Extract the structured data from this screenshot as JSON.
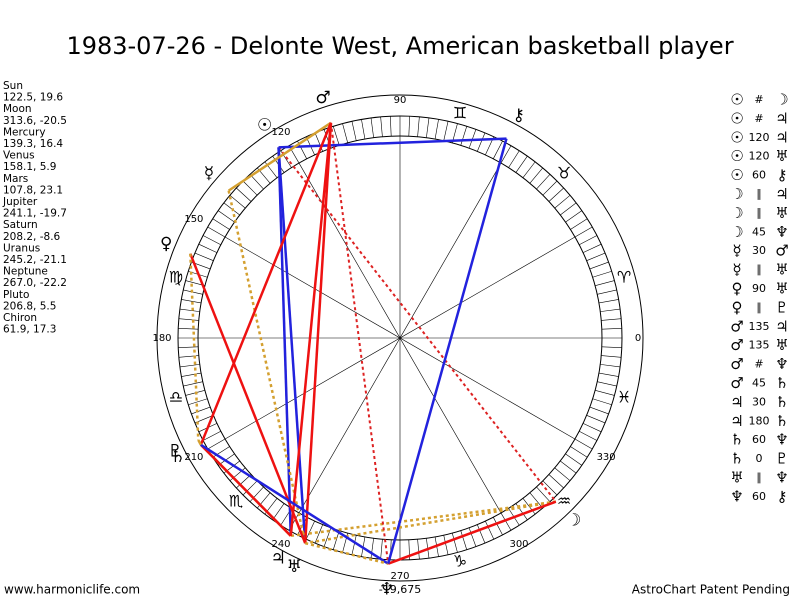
{
  "title": "1983-07-26 - Delonte West, American basketball player",
  "planets": [
    {
      "name": "Sun",
      "position": "122.5, 19.6",
      "glyph": "☉"
    },
    {
      "name": "Moon",
      "position": "313.6, -20.5",
      "glyph": "☽"
    },
    {
      "name": "Mercury",
      "position": "139.3, 16.4",
      "glyph": "☿"
    },
    {
      "name": "Venus",
      "position": "158.1, 5.9",
      "glyph": "♀"
    },
    {
      "name": "Mars",
      "position": "107.8, 23.1",
      "glyph": "♂"
    },
    {
      "name": "Jupiter",
      "position": "241.1, -19.7",
      "glyph": "♃"
    },
    {
      "name": "Saturn",
      "position": "208.2, -8.6",
      "glyph": "♄"
    },
    {
      "name": "Uranus",
      "position": "245.2, -21.1",
      "glyph": "♅"
    },
    {
      "name": "Neptune",
      "position": "267.0, -22.2",
      "glyph": "♆"
    },
    {
      "name": "Pluto",
      "position": "206.8, 5.5",
      "glyph": "♇"
    },
    {
      "name": "Chiron",
      "position": "61.9, 17.3",
      "glyph": "⚷"
    }
  ],
  "aspects": [
    {
      "p1": "☉",
      "aspect": "#",
      "p2": "☽"
    },
    {
      "p1": "☉",
      "aspect": "#",
      "p2": "♃"
    },
    {
      "p1": "☉",
      "aspect": "120",
      "p2": "♃"
    },
    {
      "p1": "☉",
      "aspect": "120",
      "p2": "♅"
    },
    {
      "p1": "☉",
      "aspect": "60",
      "p2": "⚷"
    },
    {
      "p1": "☽",
      "aspect": "∥",
      "p2": "♃"
    },
    {
      "p1": "☽",
      "aspect": "∥",
      "p2": "♅"
    },
    {
      "p1": "☽",
      "aspect": "45",
      "p2": "♆"
    },
    {
      "p1": "☿",
      "aspect": "30",
      "p2": "♂"
    },
    {
      "p1": "☿",
      "aspect": "∥",
      "p2": "♅"
    },
    {
      "p1": "♀",
      "aspect": "90",
      "p2": "♅"
    },
    {
      "p1": "♀",
      "aspect": "∥",
      "p2": "♇"
    },
    {
      "p1": "♂",
      "aspect": "135",
      "p2": "♃"
    },
    {
      "p1": "♂",
      "aspect": "135",
      "p2": "♅"
    },
    {
      "p1": "♂",
      "aspect": "#",
      "p2": "♆"
    },
    {
      "p1": "♂",
      "aspect": "45",
      "p2": "♄"
    },
    {
      "p1": "♃",
      "aspect": "30",
      "p2": "♄"
    },
    {
      "p1": "♃",
      "aspect": "180",
      "p2": "♄"
    },
    {
      "p1": "♄",
      "aspect": "60",
      "p2": "♆"
    },
    {
      "p1": "♄",
      "aspect": "0",
      "p2": "♇"
    },
    {
      "p1": "♅",
      "aspect": "∥",
      "p2": "♆"
    },
    {
      "p1": "♆",
      "aspect": "60",
      "p2": "⚷"
    }
  ],
  "degree_labels": [
    "0",
    "90",
    "120",
    "150",
    "180",
    "210",
    "240",
    "270",
    "300",
    "330"
  ],
  "signs": [
    "♈",
    "♉",
    "♊",
    "♍",
    "♎",
    "♏",
    "♑",
    "♒",
    "♓"
  ],
  "bottom_label": "-19,675",
  "footer_left": "www.harmoniclife.com",
  "footer_right": "AstroChart Patent Pending"
}
